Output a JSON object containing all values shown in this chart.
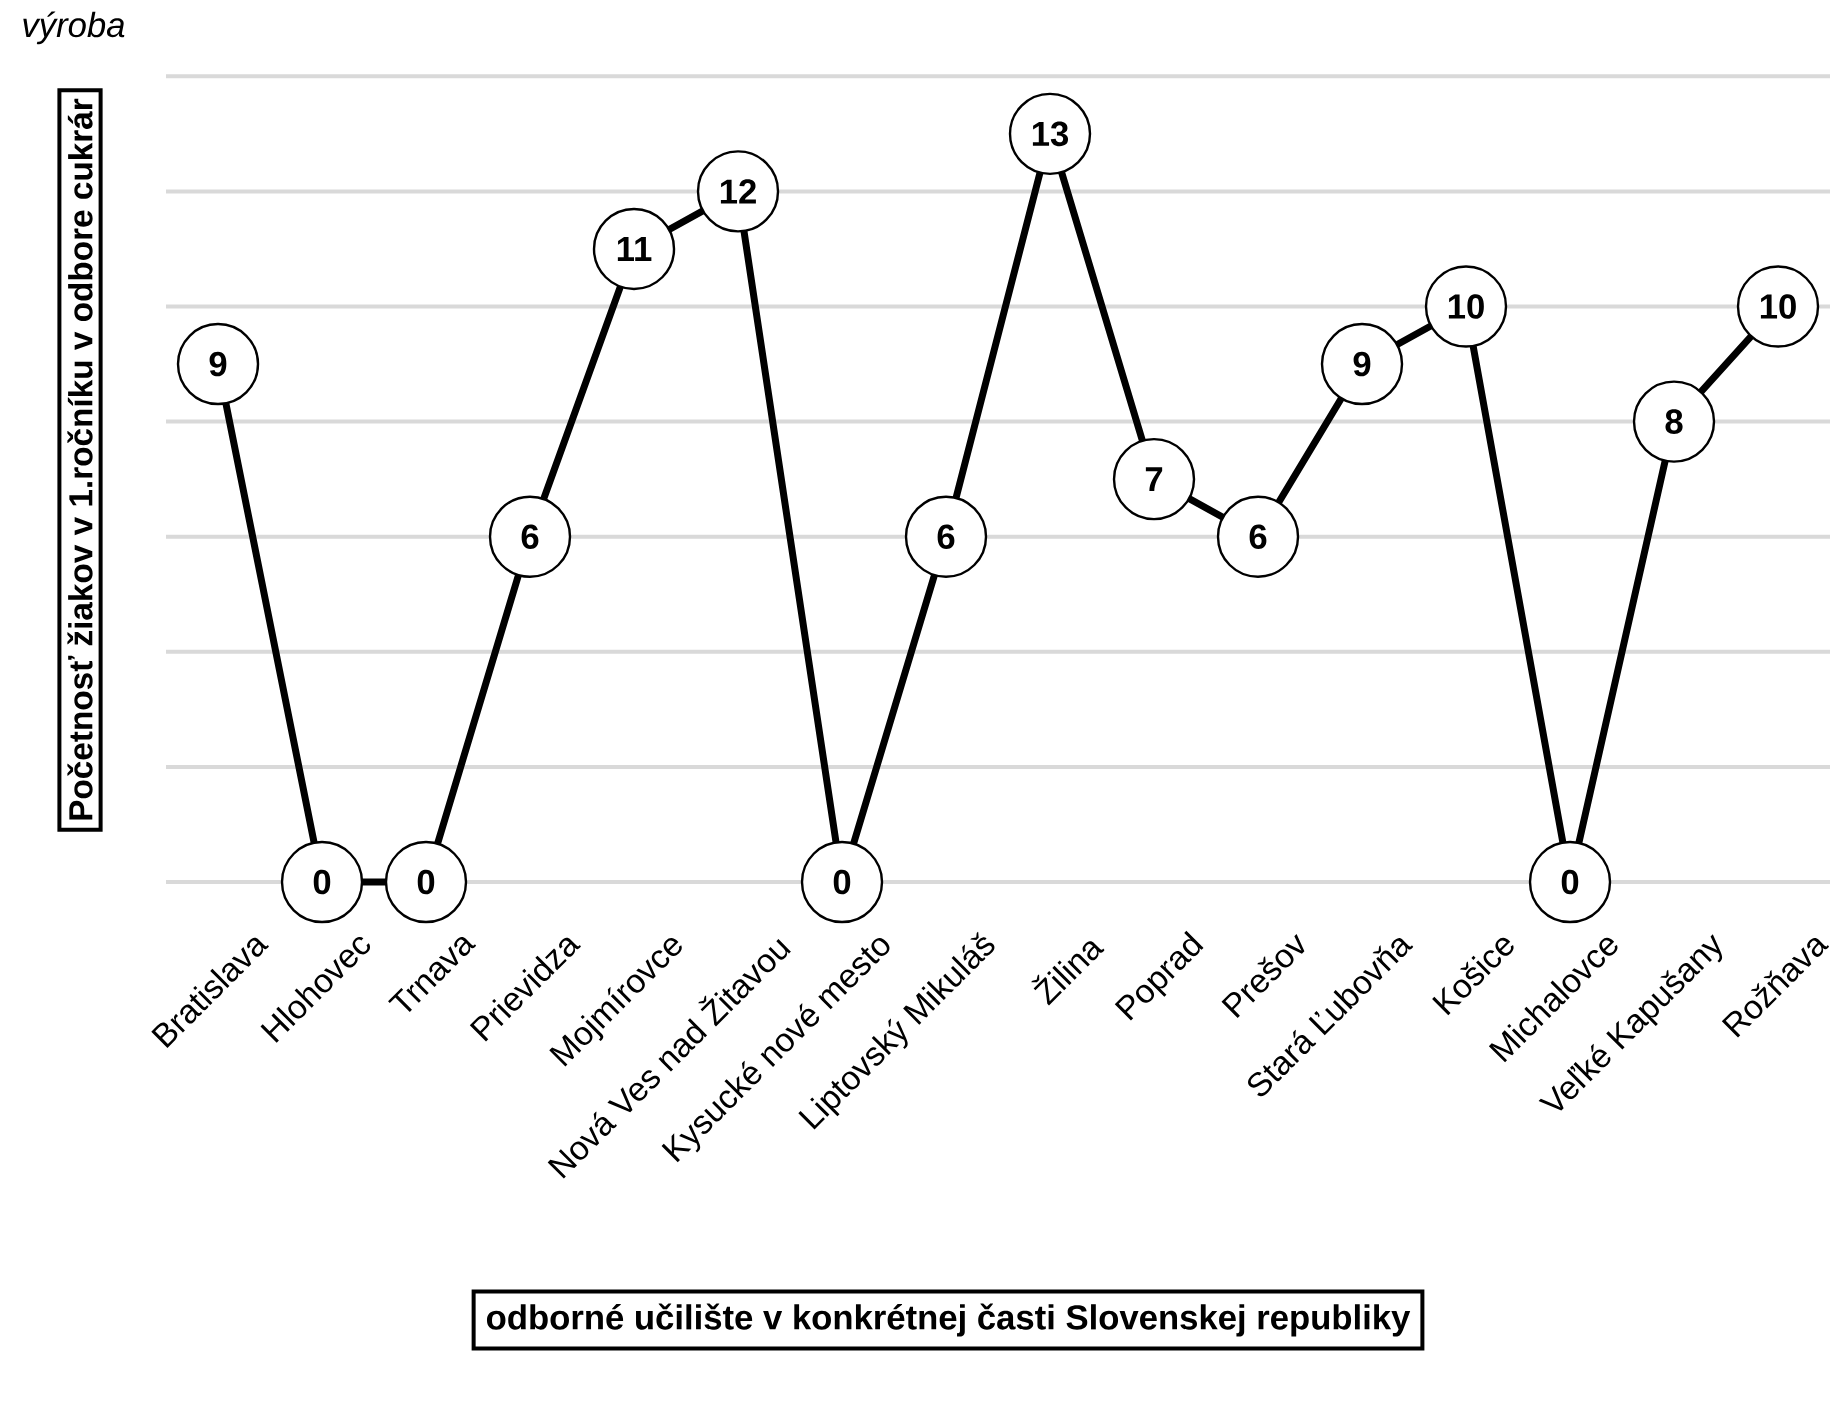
{
  "chart_data": {
    "type": "line",
    "title": "výroba",
    "xlabel": "odborné učilište v konkrétnej časti Slovenskej republiky",
    "ylabel": "Početnosť žiakov v 1.ročníku v odbore cukrár",
    "categories": [
      "Bratislava",
      "Hlohovec",
      "Trnava",
      "Prievidza",
      "Mojmírovce",
      "Nová Ves nad Žitavou",
      "Kysucké nové mesto",
      "Liptovský Mikuláš",
      "Žilina",
      "Poprad",
      "Prešov",
      "Stará Ľubovňa",
      "Košice",
      "Michalovce",
      "Veľké Kapušany",
      "Rožňava"
    ],
    "values": [
      9,
      0,
      0,
      6,
      11,
      12,
      0,
      6,
      13,
      7,
      6,
      9,
      10,
      0,
      8,
      10
    ],
    "color": "#000000",
    "tick_labels": "x",
    "grid": "y",
    "marker": "circle",
    "line_style": "solid",
    "data_labels": true
  }
}
